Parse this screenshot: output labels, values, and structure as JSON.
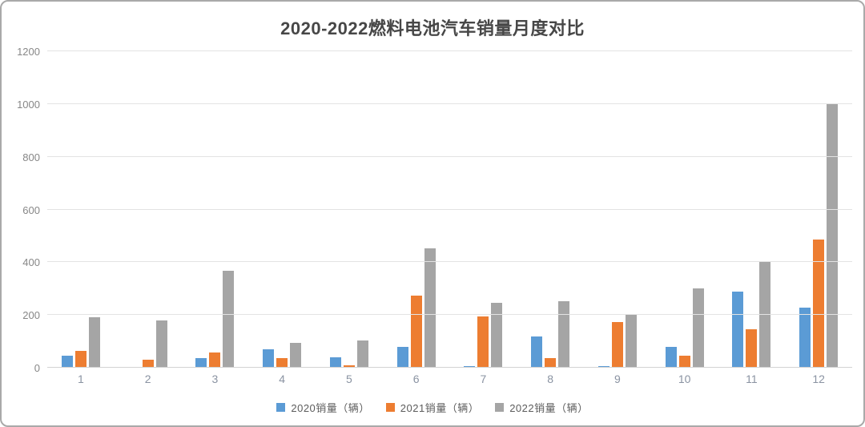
{
  "chart_data": {
    "type": "bar",
    "title": "2020-2022燃料电池汽车销量月度对比",
    "categories": [
      "1",
      "2",
      "3",
      "4",
      "5",
      "6",
      "7",
      "8",
      "9",
      "10",
      "11",
      "12"
    ],
    "series": [
      {
        "name": "2020销量（辆）",
        "color": "#5B9BD5",
        "values": [
          45,
          0,
          35,
          70,
          40,
          80,
          7,
          120,
          7,
          78,
          288,
          228
        ]
      },
      {
        "name": "2021销量（辆）",
        "color": "#ED7D31",
        "values": [
          63,
          30,
          58,
          38,
          10,
          272,
          195,
          38,
          172,
          46,
          145,
          485
        ]
      },
      {
        "name": "2022销量（辆）",
        "color": "#A5A5A5",
        "values": [
          192,
          178,
          367,
          93,
          103,
          453,
          245,
          253,
          200,
          300,
          402,
          1000
        ]
      }
    ],
    "xlabel": "",
    "ylabel": "",
    "ylim": [
      0,
      1200
    ],
    "yticks": [
      0,
      200,
      400,
      600,
      800,
      1000,
      1200
    ],
    "grid": "horizontal",
    "grid_color": "#e3e3e3",
    "baseline_color": "#d2d2d2",
    "axis_text_color": "#878787",
    "title_color": "#474747",
    "legend_position": "bottom",
    "frame_border_color": "#a9a9a9",
    "background_color": "#ffffff"
  }
}
